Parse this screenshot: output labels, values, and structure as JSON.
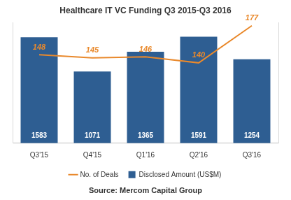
{
  "chart_data": {
    "type": "bar",
    "title": "Healthcare IT VC Funding Q3 2015-Q3 2016",
    "source": "Source: Mercom Capital Group",
    "categories": [
      "Q3'15",
      "Q4'15",
      "Q1'16",
      "Q2'16",
      "Q3'16"
    ],
    "series": [
      {
        "name": "Disclosed Amount (US$M)",
        "type": "bar",
        "color": "#2E5E92",
        "values": [
          1583,
          1071,
          1365,
          1591,
          1254
        ]
      },
      {
        "name": "No. of Deals",
        "type": "line",
        "color": "#E9892C",
        "axis": "y2",
        "values": [
          148,
          145,
          146,
          140,
          177
        ]
      }
    ],
    "ylim": [
      0,
      1800
    ],
    "y2lim": [
      60,
      180
    ],
    "data_labels": true,
    "tick_labels": "x",
    "grid": false,
    "legend": "bottom"
  }
}
